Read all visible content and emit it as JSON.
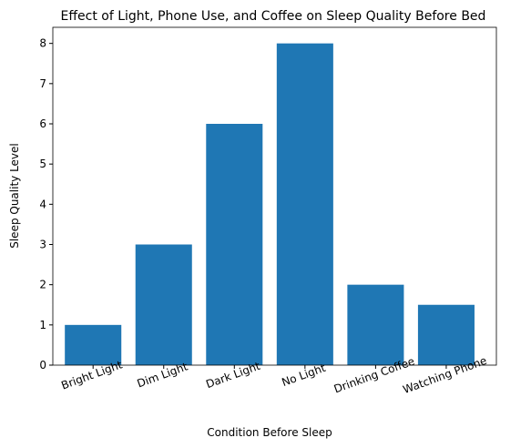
{
  "chart_data": {
    "type": "bar",
    "title": "Effect of Light, Phone Use, and Coffee on Sleep Quality Before Bed",
    "xlabel": "Condition Before Sleep",
    "ylabel": "Sleep Quality Level",
    "categories": [
      "Bright Light",
      "Dim Light",
      "Dark Light",
      "No Light",
      "Drinking Coffee",
      "Watching Phone"
    ],
    "values": [
      1,
      3,
      6,
      8,
      2,
      1.5
    ],
    "color": "#1f77b4",
    "ylim": [
      0,
      8.4
    ],
    "yticks": [
      0,
      1,
      2,
      3,
      4,
      5,
      6,
      7,
      8
    ]
  }
}
